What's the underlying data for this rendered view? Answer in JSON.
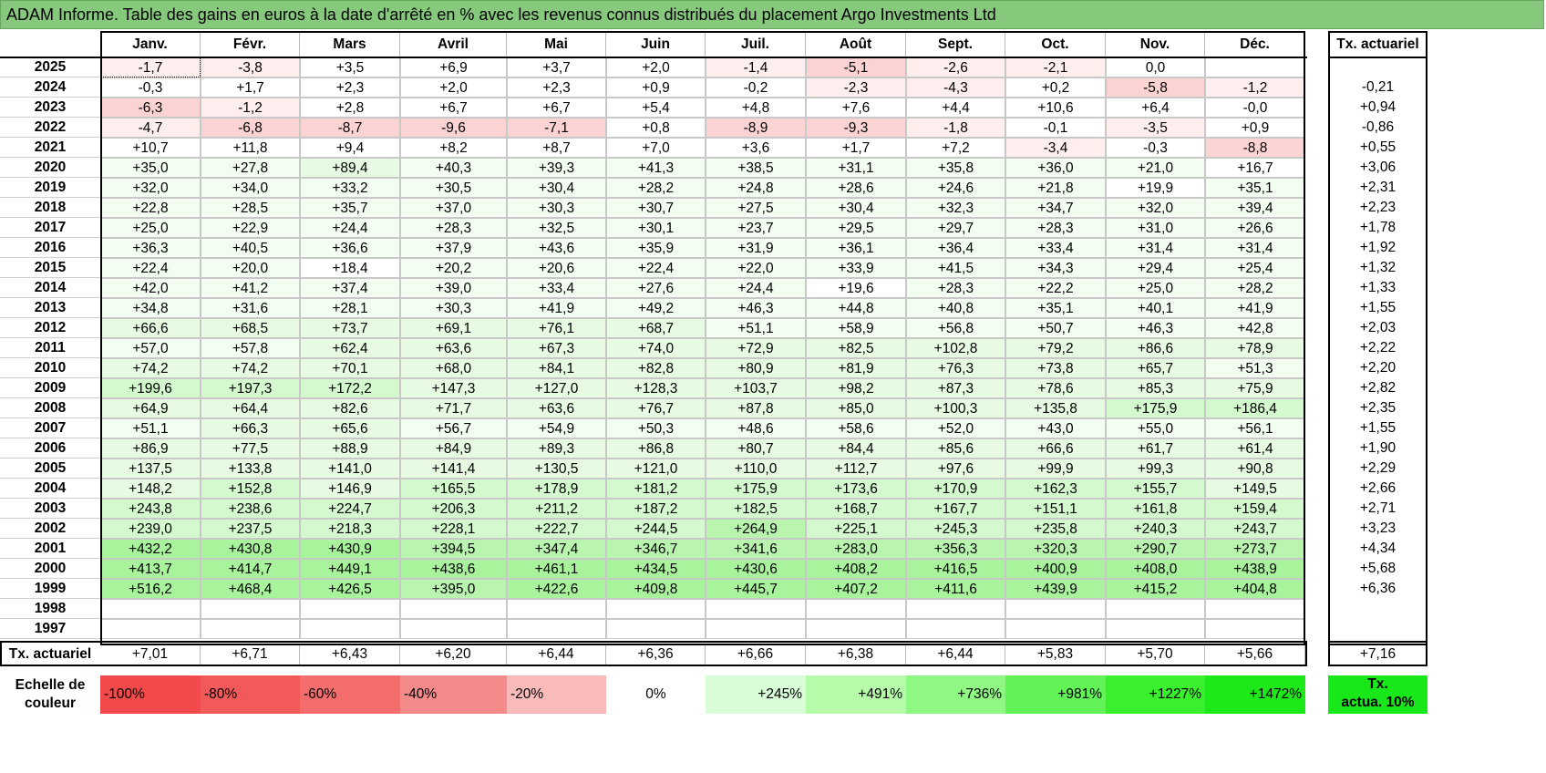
{
  "title": "ADAM Informe. Table des gains en euros à la date d'arrêté en % avec les revenus connus distribués du placement Argo Investments Ltd",
  "months": [
    "Janv.",
    "Févr.",
    "Mars",
    "Avril",
    "Mai",
    "Juin",
    "Juil.",
    "Août",
    "Sept.",
    "Oct.",
    "Nov.",
    "Déc."
  ],
  "tx_header": "Tx. actuariel",
  "rows": [
    {
      "year": "2025",
      "values": [
        "-1,7",
        "-3,8",
        "+3,5",
        "+6,9",
        "+3,7",
        "+2,0",
        "-1,4",
        "-5,1",
        "-2,6",
        "-2,1",
        "0,0",
        ""
      ],
      "tx": ""
    },
    {
      "year": "2024",
      "values": [
        "-0,3",
        "+1,7",
        "+2,3",
        "+2,0",
        "+2,3",
        "+0,9",
        "-0,2",
        "-2,3",
        "-4,3",
        "+0,2",
        "-5,8",
        "-1,2"
      ],
      "tx": "-0,21"
    },
    {
      "year": "2023",
      "values": [
        "-6,3",
        "-1,2",
        "+2,8",
        "+6,7",
        "+6,7",
        "+5,4",
        "+4,8",
        "+7,6",
        "+4,4",
        "+10,6",
        "+6,4",
        "-0,0"
      ],
      "tx": "+0,94"
    },
    {
      "year": "2022",
      "values": [
        "-4,7",
        "-6,8",
        "-8,7",
        "-9,6",
        "-7,1",
        "+0,8",
        "-8,9",
        "-9,3",
        "-1,8",
        "-0,1",
        "-3,5",
        "+0,9"
      ],
      "tx": "-0,86"
    },
    {
      "year": "2021",
      "values": [
        "+10,7",
        "+11,8",
        "+9,4",
        "+8,2",
        "+8,7",
        "+7,0",
        "+3,6",
        "+1,7",
        "+7,2",
        "-3,4",
        "-0,3",
        "-8,8"
      ],
      "tx": "+0,55"
    },
    {
      "year": "2020",
      "values": [
        "+35,0",
        "+27,8",
        "+89,4",
        "+40,3",
        "+39,3",
        "+41,3",
        "+38,5",
        "+31,1",
        "+35,8",
        "+36,0",
        "+21,0",
        "+16,7"
      ],
      "tx": "+3,06"
    },
    {
      "year": "2019",
      "values": [
        "+32,0",
        "+34,0",
        "+33,2",
        "+30,5",
        "+30,4",
        "+28,2",
        "+24,8",
        "+28,6",
        "+24,6",
        "+21,8",
        "+19,9",
        "+35,1"
      ],
      "tx": "+2,31"
    },
    {
      "year": "2018",
      "values": [
        "+22,8",
        "+28,5",
        "+35,7",
        "+37,0",
        "+30,3",
        "+30,7",
        "+27,5",
        "+30,4",
        "+32,3",
        "+34,7",
        "+32,0",
        "+39,4"
      ],
      "tx": "+2,23"
    },
    {
      "year": "2017",
      "values": [
        "+25,0",
        "+22,9",
        "+24,4",
        "+28,3",
        "+32,5",
        "+30,1",
        "+23,7",
        "+29,5",
        "+29,7",
        "+28,3",
        "+31,0",
        "+26,6"
      ],
      "tx": "+1,78"
    },
    {
      "year": "2016",
      "values": [
        "+36,3",
        "+40,5",
        "+36,6",
        "+37,9",
        "+43,6",
        "+35,9",
        "+31,9",
        "+36,1",
        "+36,4",
        "+33,4",
        "+31,4",
        "+31,4"
      ],
      "tx": "+1,92"
    },
    {
      "year": "2015",
      "values": [
        "+22,4",
        "+20,0",
        "+18,4",
        "+20,2",
        "+20,6",
        "+22,4",
        "+22,0",
        "+33,9",
        "+41,5",
        "+34,3",
        "+29,4",
        "+25,4"
      ],
      "tx": "+1,32"
    },
    {
      "year": "2014",
      "values": [
        "+42,0",
        "+41,2",
        "+37,4",
        "+39,0",
        "+33,4",
        "+27,6",
        "+24,4",
        "+19,6",
        "+28,3",
        "+22,2",
        "+25,0",
        "+28,2"
      ],
      "tx": "+1,33"
    },
    {
      "year": "2013",
      "values": [
        "+34,8",
        "+31,6",
        "+28,1",
        "+30,3",
        "+41,9",
        "+49,2",
        "+46,3",
        "+44,8",
        "+40,8",
        "+35,1",
        "+40,1",
        "+41,9"
      ],
      "tx": "+1,55"
    },
    {
      "year": "2012",
      "values": [
        "+66,6",
        "+68,5",
        "+73,7",
        "+69,1",
        "+76,1",
        "+68,7",
        "+51,1",
        "+58,9",
        "+56,8",
        "+50,7",
        "+46,3",
        "+42,8"
      ],
      "tx": "+2,03"
    },
    {
      "year": "2011",
      "values": [
        "+57,0",
        "+57,8",
        "+62,4",
        "+63,6",
        "+67,3",
        "+74,0",
        "+72,9",
        "+82,5",
        "+102,8",
        "+79,2",
        "+86,6",
        "+78,9"
      ],
      "tx": "+2,22"
    },
    {
      "year": "2010",
      "values": [
        "+74,2",
        "+74,2",
        "+70,1",
        "+68,0",
        "+84,1",
        "+82,8",
        "+80,9",
        "+81,9",
        "+76,3",
        "+73,8",
        "+65,7",
        "+51,3"
      ],
      "tx": "+2,20"
    },
    {
      "year": "2009",
      "values": [
        "+199,6",
        "+197,3",
        "+172,2",
        "+147,3",
        "+127,0",
        "+128,3",
        "+103,7",
        "+98,2",
        "+87,3",
        "+78,6",
        "+85,3",
        "+75,9"
      ],
      "tx": "+2,82"
    },
    {
      "year": "2008",
      "values": [
        "+64,9",
        "+64,4",
        "+82,6",
        "+71,7",
        "+63,6",
        "+76,7",
        "+87,8",
        "+85,0",
        "+100,3",
        "+135,8",
        "+175,9",
        "+186,4"
      ],
      "tx": "+2,35"
    },
    {
      "year": "2007",
      "values": [
        "+51,1",
        "+66,3",
        "+65,6",
        "+56,7",
        "+54,9",
        "+50,3",
        "+48,6",
        "+58,6",
        "+52,0",
        "+43,0",
        "+55,0",
        "+56,1"
      ],
      "tx": "+1,55"
    },
    {
      "year": "2006",
      "values": [
        "+86,9",
        "+77,5",
        "+88,9",
        "+84,9",
        "+89,3",
        "+86,8",
        "+80,7",
        "+84,4",
        "+85,6",
        "+66,6",
        "+61,7",
        "+61,4"
      ],
      "tx": "+1,90"
    },
    {
      "year": "2005",
      "values": [
        "+137,5",
        "+133,8",
        "+141,0",
        "+141,4",
        "+130,5",
        "+121,0",
        "+110,0",
        "+112,7",
        "+97,6",
        "+99,9",
        "+99,3",
        "+90,8"
      ],
      "tx": "+2,29"
    },
    {
      "year": "2004",
      "values": [
        "+148,2",
        "+152,8",
        "+146,9",
        "+165,5",
        "+178,9",
        "+181,2",
        "+175,9",
        "+173,6",
        "+170,9",
        "+162,3",
        "+155,7",
        "+149,5"
      ],
      "tx": "+2,66"
    },
    {
      "year": "2003",
      "values": [
        "+243,8",
        "+238,6",
        "+224,7",
        "+206,3",
        "+211,2",
        "+187,2",
        "+182,5",
        "+168,7",
        "+167,7",
        "+151,1",
        "+161,8",
        "+159,4"
      ],
      "tx": "+2,71"
    },
    {
      "year": "2002",
      "values": [
        "+239,0",
        "+237,5",
        "+218,3",
        "+228,1",
        "+222,7",
        "+244,5",
        "+264,9",
        "+225,1",
        "+245,3",
        "+235,8",
        "+240,3",
        "+243,7"
      ],
      "tx": "+3,23"
    },
    {
      "year": "2001",
      "values": [
        "+432,2",
        "+430,8",
        "+430,9",
        "+394,5",
        "+347,4",
        "+346,7",
        "+341,6",
        "+283,0",
        "+356,3",
        "+320,3",
        "+290,7",
        "+273,7"
      ],
      "tx": "+4,34"
    },
    {
      "year": "2000",
      "values": [
        "+413,7",
        "+414,7",
        "+449,1",
        "+438,6",
        "+461,1",
        "+434,5",
        "+430,6",
        "+408,2",
        "+416,5",
        "+400,9",
        "+408,0",
        "+438,9"
      ],
      "tx": "+5,68"
    },
    {
      "year": "1999",
      "values": [
        "+516,2",
        "+468,4",
        "+426,5",
        "+395,0",
        "+422,6",
        "+409,8",
        "+445,7",
        "+407,2",
        "+411,6",
        "+439,9",
        "+415,2",
        "+404,8"
      ],
      "tx": "+6,36"
    },
    {
      "year": "1998",
      "values": [
        "",
        "",
        "",
        "",
        "",
        "",
        "",
        "",
        "",
        "",
        "",
        ""
      ],
      "tx": ""
    },
    {
      "year": "1997",
      "values": [
        "",
        "",
        "",
        "",
        "",
        "",
        "",
        "",
        "",
        "",
        "",
        ""
      ],
      "tx": ""
    }
  ],
  "footer": {
    "label": "Tx. actuariel",
    "values": [
      "+7,01",
      "+6,71",
      "+6,43",
      "+6,20",
      "+6,44",
      "+6,36",
      "+6,66",
      "+6,38",
      "+6,44",
      "+5,83",
      "+5,70",
      "+5,66"
    ],
    "total": "+7,16"
  },
  "scale": {
    "label_line1": "Echelle de",
    "label_line2": "couleur",
    "items": [
      {
        "text": "-100%",
        "color": "#f24a4a",
        "align": "left"
      },
      {
        "text": "-80%",
        "color": "#f25a5a",
        "align": "left"
      },
      {
        "text": "-60%",
        "color": "#f36d6d",
        "align": "left"
      },
      {
        "text": "-40%",
        "color": "#f58a8a",
        "align": "left"
      },
      {
        "text": "-20%",
        "color": "#f9baba",
        "align": "left"
      },
      {
        "text": "0%",
        "color": "#ffffff",
        "align": "center"
      },
      {
        "text": "+245%",
        "color": "#d9fdd6",
        "align": "right"
      },
      {
        "text": "+491%",
        "color": "#b5fbaa",
        "align": "right"
      },
      {
        "text": "+736%",
        "color": "#8ff882",
        "align": "right"
      },
      {
        "text": "+981%",
        "color": "#62f356",
        "align": "right"
      },
      {
        "text": "+1227%",
        "color": "#3aef2e",
        "align": "right"
      },
      {
        "text": "+1472%",
        "color": "#1de818",
        "align": "right"
      }
    ],
    "tx_line1": "Tx.",
    "tx_line2": "actua. 10%",
    "tx_color": "#18e81a"
  },
  "colors": {
    "title_bg": "#86c97d",
    "neg_light": "#ffeeee",
    "neg_mid": "#fbd3d3",
    "pos_faint": "#f3fdf1",
    "pos_light": "#e7fbe3",
    "pos_mid": "#d4f9ce",
    "pos_strong": "#b9f5ae",
    "pos_max": "#a9f39d"
  }
}
